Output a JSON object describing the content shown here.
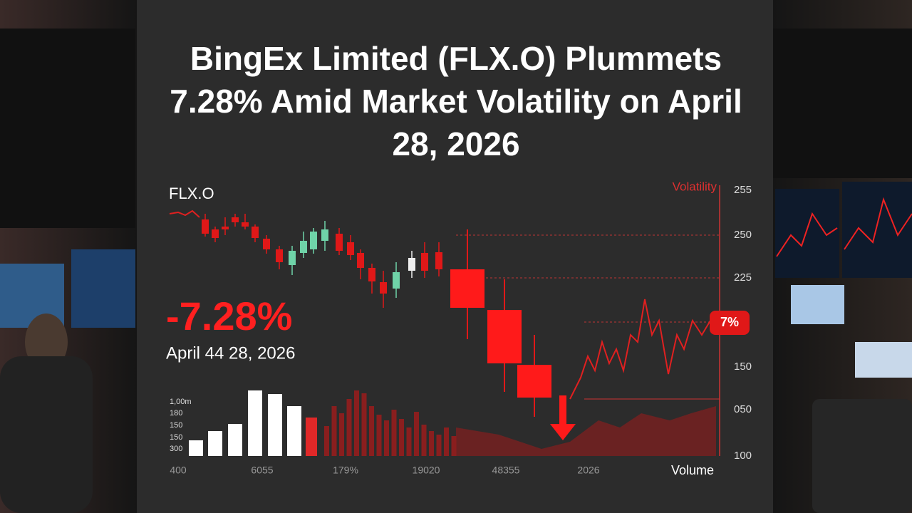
{
  "header": {
    "title": "BingEx Limited (FLX.O) Plummets 7.28% Amid Market Volatility on April 28, 2026"
  },
  "chart": {
    "ticker": "FLX.O",
    "change": "-7.28%",
    "date": "April 44 28, 2026",
    "volatility_label": "Volatility",
    "badge": "7%",
    "right_axis": [
      "255",
      "250",
      "225",
      "150",
      "050",
      "100"
    ],
    "left_axis": [
      "1,00m",
      "180",
      "150",
      "150",
      "300"
    ],
    "x_axis": [
      "400",
      "6055",
      "179%",
      "19020",
      "48355",
      "2026"
    ],
    "volume_label": "Volume"
  }
}
